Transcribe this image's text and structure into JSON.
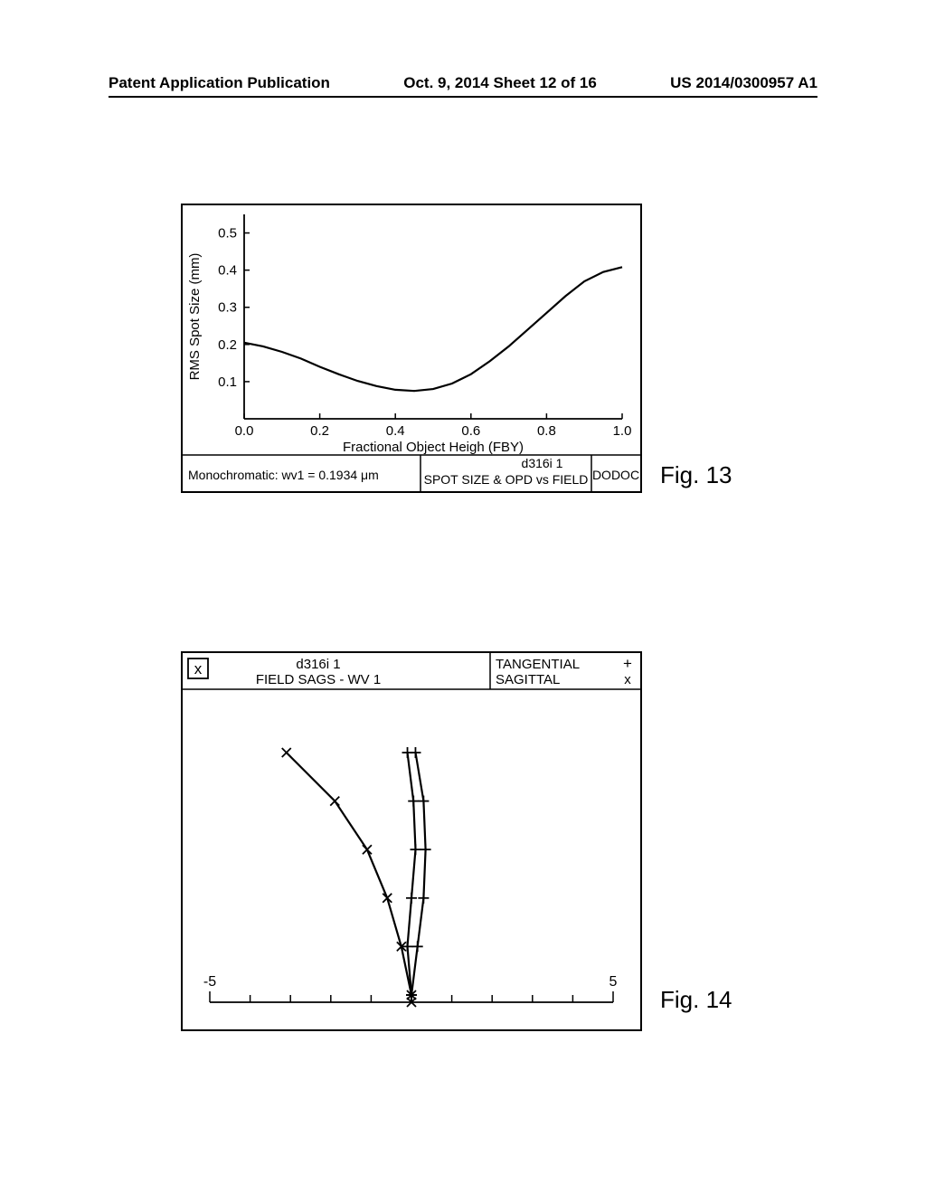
{
  "header": {
    "left": "Patent Application Publication",
    "center": "Oct. 9, 2014  Sheet 12 of 16",
    "right": "US 2014/0300957 A1"
  },
  "fig13": {
    "label": "Fig. 13",
    "type": "line",
    "ylabel": "RMS Spot Size (mm)",
    "xlabel": "Fractional Object Heigh (FBY)",
    "xlim": [
      0.0,
      1.0
    ],
    "ylim": [
      0.0,
      0.55
    ],
    "xticks": [
      "0.0",
      "0.2",
      "0.4",
      "0.6",
      "0.8",
      "1.0"
    ],
    "yticks": [
      "0.1",
      "0.2",
      "0.3",
      "0.4",
      "0.5"
    ],
    "footer_left": "Monochromatic: wv1 = 0.1934 μm",
    "footer_mid_top": "d316i 1",
    "footer_mid_bottom": "SPOT SIZE & OPD vs FIELD",
    "footer_right": "DODOC",
    "curve_points": [
      [
        0.0,
        0.205
      ],
      [
        0.05,
        0.195
      ],
      [
        0.1,
        0.18
      ],
      [
        0.15,
        0.162
      ],
      [
        0.2,
        0.14
      ],
      [
        0.25,
        0.12
      ],
      [
        0.3,
        0.102
      ],
      [
        0.35,
        0.088
      ],
      [
        0.4,
        0.078
      ],
      [
        0.45,
        0.075
      ],
      [
        0.5,
        0.08
      ],
      [
        0.55,
        0.095
      ],
      [
        0.6,
        0.12
      ],
      [
        0.65,
        0.155
      ],
      [
        0.7,
        0.195
      ],
      [
        0.75,
        0.24
      ],
      [
        0.8,
        0.285
      ],
      [
        0.85,
        0.33
      ],
      [
        0.9,
        0.37
      ],
      [
        0.95,
        0.395
      ],
      [
        1.0,
        0.408
      ]
    ],
    "axis_color": "#000000",
    "line_color": "#000000",
    "bg_color": "#ffffff",
    "line_width": 2.2,
    "label_fontsize": 15,
    "tick_fontsize": 15
  },
  "fig14": {
    "label": "Fig. 14",
    "type": "field-curvature",
    "title_top": "d316i 1",
    "title_bottom": "FIELD SAGS - WV 1",
    "legend_tangential": "TANGENTIAL",
    "legend_tangential_mark": "+",
    "legend_sagittal": "SAGITTAL",
    "legend_sagittal_mark": "x",
    "corner_mark": "x",
    "xlim": [
      -5,
      5
    ],
    "xticks_major": [
      "-5",
      "5"
    ],
    "xticks_minor_count": 11,
    "tangential": [
      [
        0.0,
        0.0
      ],
      [
        -0.1,
        0.2
      ],
      [
        0.0,
        0.4
      ],
      [
        0.1,
        0.6
      ],
      [
        0.05,
        0.8
      ],
      [
        -0.1,
        1.0
      ]
    ],
    "tangential_inner": [
      [
        0.0,
        0.0
      ],
      [
        0.15,
        0.2
      ],
      [
        0.3,
        0.4
      ],
      [
        0.35,
        0.6
      ],
      [
        0.3,
        0.8
      ],
      [
        0.1,
        1.0
      ]
    ],
    "sagittal": [
      [
        0.0,
        0.0
      ],
      [
        -0.25,
        0.2
      ],
      [
        -0.6,
        0.4
      ],
      [
        -1.1,
        0.6
      ],
      [
        -1.9,
        0.8
      ],
      [
        -3.1,
        1.0
      ]
    ],
    "axis_color": "#000000",
    "line_color": "#000000",
    "bg_color": "#ffffff",
    "line_width": 2.2,
    "label_fontsize": 15
  }
}
